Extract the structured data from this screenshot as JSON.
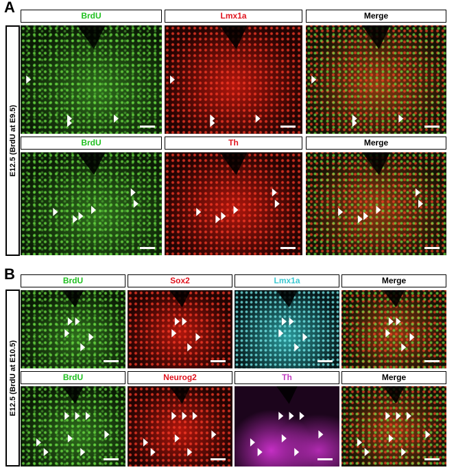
{
  "panel_a": {
    "label": "A",
    "side_label": "E12.5 (BrdU at E9.5)",
    "rows": [
      [
        "BrdU",
        "Lmx1a",
        "Merge"
      ],
      [
        "BrdU",
        "Th",
        "Merge"
      ]
    ]
  },
  "panel_b": {
    "label": "B",
    "side_label": "E12.5 (BrdU at E10.5)",
    "rows": [
      [
        "BrdU",
        "Sox2",
        "Lmx1a",
        "Merge"
      ],
      [
        "BrdU",
        "Neurog2",
        "Th",
        "Merge"
      ]
    ]
  }
}
